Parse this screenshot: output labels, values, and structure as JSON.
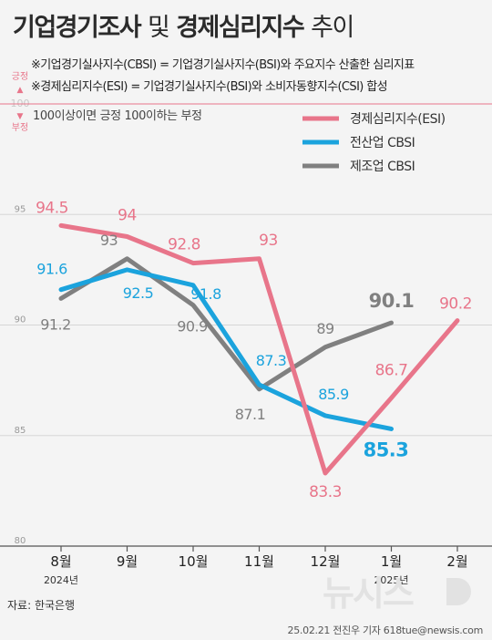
{
  "header": {
    "title_bold": "기업경기조사",
    "title_light": "및",
    "title_bold2": "경제심리지수",
    "title_light2": "추이",
    "note1": "※기업경기실사지수(CBSI) = 기업경기실사지수(BSI)와 주요지수 산출한 심리지표",
    "note2": "※경제심리지수(ESI) = 기업경기실사지수(BSI)와 소비자동향지수(CSI) 합성"
  },
  "annot": {
    "up_label": "긍정",
    "up_arrow": "▲",
    "hundred": "100",
    "down_arrow": "▼",
    "down_label": "부정",
    "ref_text": "100이상이면 긍정 100이하는 부정"
  },
  "footer": {
    "source": "자료: 한국은행",
    "credit": "25.02.21 전진우 기자 618tue@newsis.com",
    "watermark": "뉴시스"
  },
  "colors": {
    "esi": "#e8758a",
    "total": "#1ba3dd",
    "mfg": "#808080"
  },
  "chart_data": {
    "type": "line",
    "categories": [
      "8월",
      "9월",
      "10월",
      "11월",
      "12월",
      "1월",
      "2월"
    ],
    "year_labels": [
      "2024년",
      "",
      "",
      "",
      "",
      "2025년",
      ""
    ],
    "ylim": [
      80,
      100
    ],
    "yticks": [
      "80",
      "85",
      "90",
      "95"
    ],
    "series": [
      {
        "name": "경제심리지수(ESI)",
        "values": [
          94.5,
          94,
          92.8,
          93,
          83.3,
          86.7,
          90.2
        ],
        "labels": [
          "94.5",
          "94",
          "92.8",
          "93",
          "83.3",
          "86.7",
          "90.2"
        ]
      },
      {
        "name": "전산업 CBSI",
        "values": [
          91.6,
          92.5,
          91.8,
          87.3,
          85.9,
          85.3,
          null
        ],
        "labels": [
          "91.6",
          "92.5",
          "91.8",
          "87.3",
          "85.9",
          "85.3",
          ""
        ]
      },
      {
        "name": "제조업 CBSI",
        "values": [
          91.2,
          93,
          90.9,
          87.1,
          89,
          90.1,
          null
        ],
        "labels": [
          "91.2",
          "93",
          "90.9",
          "87.1",
          "89",
          "90.1",
          ""
        ]
      }
    ]
  }
}
